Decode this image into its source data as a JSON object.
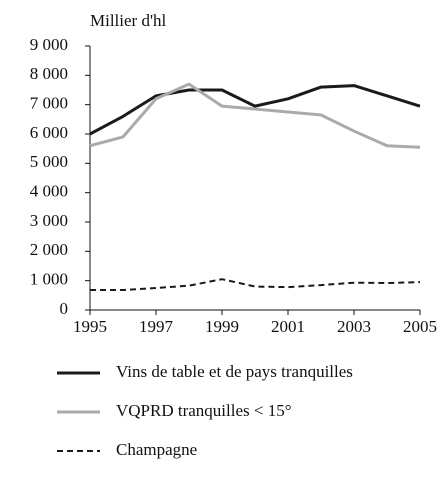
{
  "chart_data": {
    "type": "line",
    "ylabel": "Millier d'hl",
    "x": [
      1995,
      1996,
      1997,
      1998,
      1999,
      2000,
      2001,
      2002,
      2003,
      2004,
      2005
    ],
    "xlim": [
      1995,
      2005
    ],
    "xticks": [
      1995,
      1997,
      1999,
      2001,
      2003,
      2005
    ],
    "ylim": [
      0,
      9000
    ],
    "yticks": [
      0,
      {
        "value": 1000,
        "label": "1 000"
      },
      {
        "value": 2000,
        "label": "2 000"
      },
      {
        "value": 3000,
        "label": "3 000"
      },
      {
        "value": 4000,
        "label": "4 000"
      },
      {
        "value": 5000,
        "label": "5 000"
      },
      {
        "value": 6000,
        "label": "6 000"
      },
      {
        "value": 7000,
        "label": "7 000"
      },
      {
        "value": 8000,
        "label": "8 000"
      },
      {
        "value": 9000,
        "label": "9 000"
      }
    ],
    "series": [
      {
        "name": "Vins de table et de pays tranquilles",
        "color": "#1a1a1a",
        "style": "solid",
        "values": [
          6000,
          6600,
          7300,
          7500,
          7500,
          6950,
          7200,
          7600,
          7650,
          7300,
          6950
        ]
      },
      {
        "name": "VQPRD tranquilles < 15°",
        "color": "#aaaaaa",
        "style": "solid",
        "values": [
          5600,
          5900,
          7200,
          7700,
          6950,
          6850,
          6750,
          6650,
          6100,
          5600,
          5550
        ]
      },
      {
        "name": "Champagne",
        "color": "#1a1a1a",
        "style": "dashed",
        "values": [
          680,
          680,
          750,
          830,
          1050,
          800,
          780,
          850,
          930,
          920,
          950
        ]
      }
    ]
  }
}
